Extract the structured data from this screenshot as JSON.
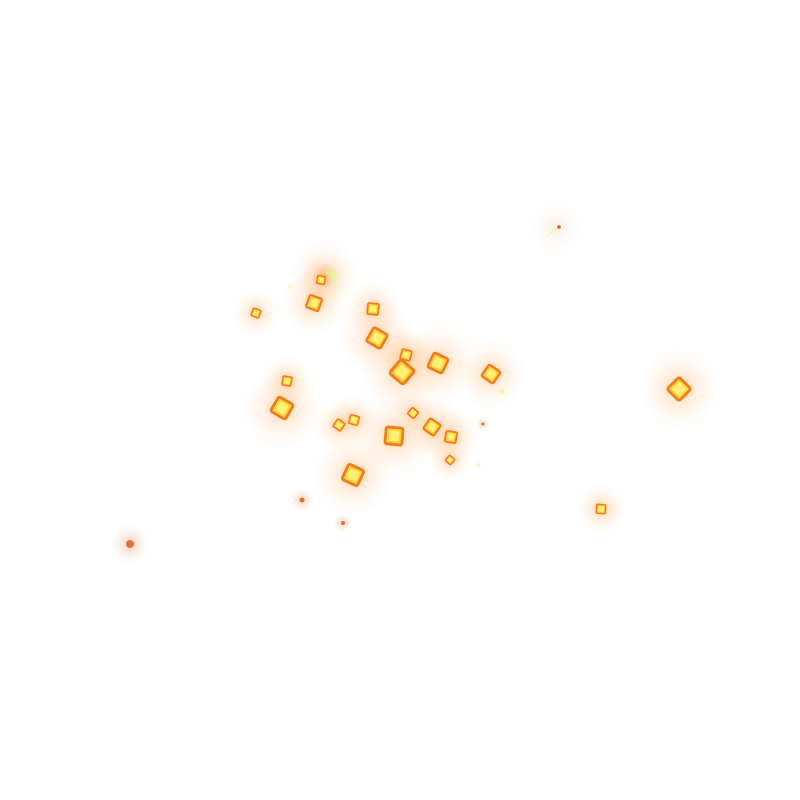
{
  "scene": {
    "background_color": "#ffffff",
    "particle_shape": "rotated-square",
    "glow_colors": {
      "core": "#fff27a",
      "inner": "#ffd23c",
      "edge": "#f07a1e",
      "halo": "#ff9a3c",
      "ember": "#e25a20",
      "spark": "#d7ff8a",
      "trail": "#ecffb0"
    },
    "particle_count": 33
  }
}
